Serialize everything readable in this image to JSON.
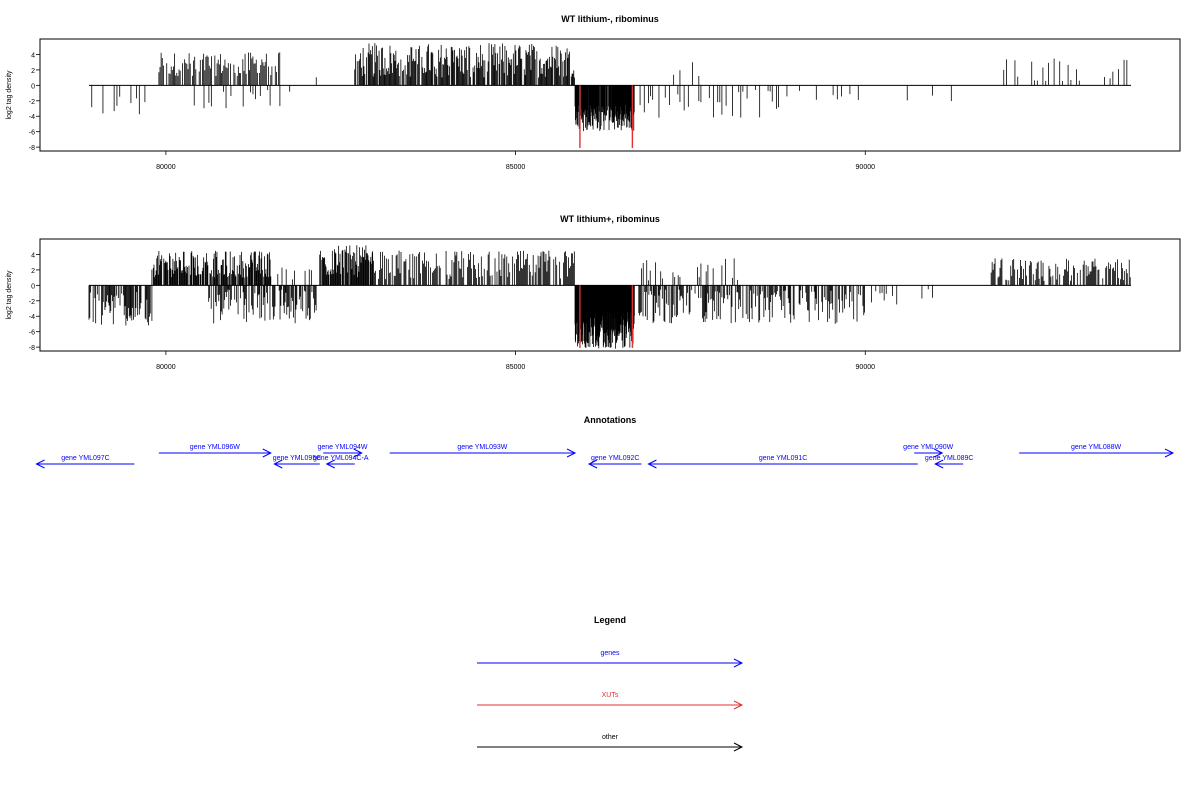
{
  "chart_data": [
    {
      "type": "bar",
      "title": "WT lithium-, ribominus",
      "xlabel": "",
      "ylabel": "log2 tag density",
      "xlim": [
        78200,
        94500
      ],
      "ylim": [
        -8.5,
        6
      ],
      "x_ticks": [
        80000,
        85000,
        90000
      ],
      "x_tick_labels": [
        "80000",
        "85000",
        "90000"
      ],
      "y_ticks": [
        -8,
        -6,
        -4,
        -2,
        0,
        2,
        4
      ],
      "y_tick_labels": [
        "-8",
        "-6",
        "-4",
        "-2",
        "0",
        "2",
        "4"
      ],
      "baseline_range": [
        78900,
        93800
      ],
      "grid": false,
      "series": [
        {
          "color": "#000000",
          "density_segments": [
            {
              "start": 78900,
              "end": 79750,
              "sign": -1,
              "min": 0.8,
              "max": 4.0,
              "step": 40,
              "fill": 0.55
            },
            {
              "start": 79900,
              "end": 81650,
              "sign": 1,
              "min": 1.2,
              "max": 4.3,
              "step": 16,
              "fill": 0.75
            },
            {
              "start": 80300,
              "end": 81900,
              "sign": -1,
              "min": 0.5,
              "max": 3.2,
              "step": 35,
              "fill": 0.35
            },
            {
              "start": 82150,
              "end": 82250,
              "sign": 1,
              "min": 1.0,
              "max": 2.0,
              "step": 40,
              "fill": 0.6
            },
            {
              "start": 82700,
              "end": 85850,
              "sign": 1,
              "min": 1.0,
              "max": 5.5,
              "step": 12,
              "fill": 0.85
            },
            {
              "start": 85850,
              "end": 86700,
              "sign": -1,
              "min": 2.5,
              "max": 6.0,
              "step": 6,
              "fill": 0.95
            },
            {
              "start": 86750,
              "end": 88900,
              "sign": -1,
              "min": 0.5,
              "max": 4.3,
              "step": 30,
              "fill": 0.45
            },
            {
              "start": 86900,
              "end": 87800,
              "sign": 1,
              "min": 0.5,
              "max": 3.2,
              "step": 90,
              "fill": 0.35
            },
            {
              "start": 89000,
              "end": 89900,
              "sign": -1,
              "min": 0.5,
              "max": 2.0,
              "step": 60,
              "fill": 0.3
            },
            {
              "start": 90600,
              "end": 91400,
              "sign": -1,
              "min": 0.5,
              "max": 2.5,
              "step": 90,
              "fill": 0.4
            },
            {
              "start": 91900,
              "end": 93800,
              "sign": 1,
              "min": 0.5,
              "max": 3.8,
              "step": 40,
              "fill": 0.4
            }
          ]
        },
        {
          "color": "#e03030",
          "x": [
            85920,
            86670
          ],
          "values": [
            -8.1,
            -8.1
          ]
        }
      ]
    },
    {
      "type": "bar",
      "title": "WT lithium+, ribominus",
      "xlabel": "",
      "ylabel": "log2 tag density",
      "xlim": [
        78200,
        94500
      ],
      "ylim": [
        -8.5,
        6
      ],
      "x_ticks": [
        80000,
        85000,
        90000
      ],
      "x_tick_labels": [
        "80000",
        "85000",
        "90000"
      ],
      "y_ticks": [
        -8,
        -6,
        -4,
        -2,
        0,
        2,
        4
      ],
      "y_tick_labels": [
        "-8",
        "-6",
        "-4",
        "-2",
        "0",
        "2",
        "4"
      ],
      "baseline_range": [
        78900,
        93800
      ],
      "grid": false,
      "series": [
        {
          "color": "#000000",
          "density_segments": [
            {
              "start": 78900,
              "end": 79800,
              "sign": -1,
              "min": 0.8,
              "max": 5.2,
              "step": 12,
              "fill": 0.75
            },
            {
              "start": 79800,
              "end": 81500,
              "sign": 1,
              "min": 1.0,
              "max": 4.5,
              "step": 10,
              "fill": 0.85
            },
            {
              "start": 80600,
              "end": 82150,
              "sign": -1,
              "min": 0.5,
              "max": 5.0,
              "step": 12,
              "fill": 0.65
            },
            {
              "start": 81600,
              "end": 82100,
              "sign": 1,
              "min": 0.5,
              "max": 2.5,
              "step": 30,
              "fill": 0.5
            },
            {
              "start": 82200,
              "end": 82950,
              "sign": 1,
              "min": 1.0,
              "max": 5.2,
              "step": 10,
              "fill": 0.85
            },
            {
              "start": 82900,
              "end": 85850,
              "sign": 1,
              "min": 0.8,
              "max": 4.5,
              "step": 14,
              "fill": 0.75
            },
            {
              "start": 85850,
              "end": 86700,
              "sign": -1,
              "min": 3.0,
              "max": 8.2,
              "step": 4,
              "fill": 1.0
            },
            {
              "start": 86750,
              "end": 90000,
              "sign": -1,
              "min": 0.5,
              "max": 5.0,
              "step": 12,
              "fill": 0.6
            },
            {
              "start": 86800,
              "end": 88200,
              "sign": 1,
              "min": 0.5,
              "max": 3.5,
              "step": 25,
              "fill": 0.45
            },
            {
              "start": 90000,
              "end": 91000,
              "sign": -1,
              "min": 0.5,
              "max": 2.5,
              "step": 30,
              "fill": 0.4
            },
            {
              "start": 91800,
              "end": 93800,
              "sign": 1,
              "min": 0.5,
              "max": 3.5,
              "step": 14,
              "fill": 0.65
            }
          ]
        },
        {
          "color": "#e03030",
          "x": [
            85920,
            86670
          ],
          "values": [
            -8.1,
            -8.1
          ]
        }
      ]
    }
  ],
  "annotations": {
    "title": "Annotations",
    "genes": [
      {
        "label": "gene YML097C",
        "start": 78150,
        "end": 79550,
        "direction": "left",
        "row": 2,
        "color": "#0000ff"
      },
      {
        "label": "gene YML096W",
        "start": 79900,
        "end": 81500,
        "direction": "right",
        "row": 1,
        "color": "#0000ff"
      },
      {
        "label": "gene YML095C",
        "start": 81550,
        "end": 82200,
        "direction": "left",
        "row": 2,
        "color": "#0000ff"
      },
      {
        "label": "gene YML094W",
        "start": 82250,
        "end": 82800,
        "direction": "right",
        "row": 1,
        "color": "#0000ff"
      },
      {
        "label": "gene YML094C-A",
        "start": 82300,
        "end": 82700,
        "direction": "left",
        "row": 2,
        "color": "#0000ff"
      },
      {
        "label": "gene YML093W",
        "start": 83200,
        "end": 85850,
        "direction": "right",
        "row": 1,
        "color": "#0000ff"
      },
      {
        "label": "gene YML092C",
        "start": 86050,
        "end": 86800,
        "direction": "left",
        "row": 2,
        "color": "#0000ff"
      },
      {
        "label": "gene YML091C",
        "start": 86900,
        "end": 90750,
        "direction": "left",
        "row": 2,
        "color": "#0000ff"
      },
      {
        "label": "gene YML090W",
        "start": 90700,
        "end": 91100,
        "direction": "right",
        "row": 1,
        "color": "#0000ff"
      },
      {
        "label": "gene YML089C",
        "start": 91000,
        "end": 91400,
        "direction": "left",
        "row": 2,
        "color": "#0000ff"
      },
      {
        "label": "gene YML088W",
        "start": 92200,
        "end": 94400,
        "direction": "right",
        "row": 1,
        "color": "#0000ff"
      }
    ]
  },
  "legend": {
    "title": "Legend",
    "items": [
      {
        "label": "genes",
        "color": "#0000ff"
      },
      {
        "label": "XUTs",
        "color": "#e03030"
      },
      {
        "label": "other",
        "color": "#000000"
      }
    ]
  }
}
